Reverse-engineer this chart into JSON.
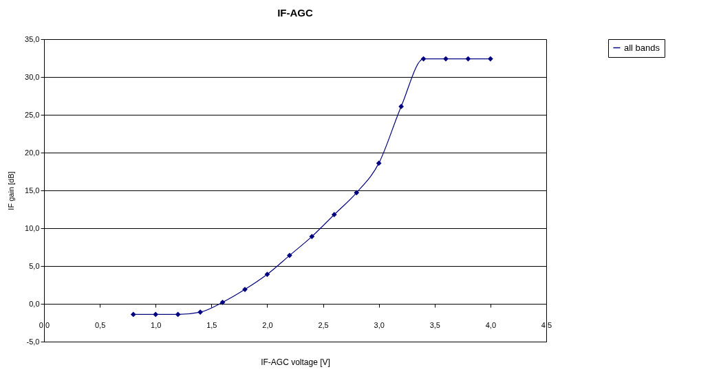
{
  "chart_data": {
    "type": "line",
    "title": "IF-AGC",
    "xlabel": "IF-AGC voltage [V]",
    "ylabel": "IF gain [dB]",
    "x": [
      0.8,
      1.0,
      1.2,
      1.4,
      1.6,
      1.8,
      2.0,
      2.2,
      2.4,
      2.6,
      2.8,
      3.0,
      3.2,
      3.4,
      3.6,
      3.8,
      4.0
    ],
    "series": [
      {
        "name": "all bands",
        "color": "#000080",
        "values": [
          -1.4,
          -1.4,
          -1.4,
          -1.1,
          0.2,
          1.9,
          3.9,
          6.4,
          8.9,
          11.8,
          14.7,
          18.6,
          26.1,
          32.4,
          32.4,
          32.4,
          32.4
        ]
      }
    ],
    "xlim": [
      0,
      4.5
    ],
    "xticks": [
      {
        "value": 0,
        "label": "0,0"
      },
      {
        "value": 0.5,
        "label": "0,5"
      },
      {
        "value": 1,
        "label": "1,0"
      },
      {
        "value": 1.5,
        "label": "1,5"
      },
      {
        "value": 2,
        "label": "2,0"
      },
      {
        "value": 2.5,
        "label": "2,5"
      },
      {
        "value": 3,
        "label": "3,0"
      },
      {
        "value": 3.5,
        "label": "3,5"
      },
      {
        "value": 4,
        "label": "4,0"
      },
      {
        "value": 4.5,
        "label": "4,5"
      }
    ],
    "ylim": [
      -5,
      35
    ],
    "yticks": [
      {
        "value": -5,
        "label": "-5,0"
      },
      {
        "value": 0,
        "label": "0,0"
      },
      {
        "value": 5,
        "label": "5,0"
      },
      {
        "value": 10,
        "label": "10,0"
      },
      {
        "value": 15,
        "label": "15,0"
      },
      {
        "value": 20,
        "label": "20,0"
      },
      {
        "value": 25,
        "label": "25,0"
      },
      {
        "value": 30,
        "label": "30,0"
      },
      {
        "value": 35,
        "label": "35,0"
      }
    ],
    "grid": "y",
    "legend": "right",
    "marker": "diamond",
    "line_style": "solid"
  }
}
